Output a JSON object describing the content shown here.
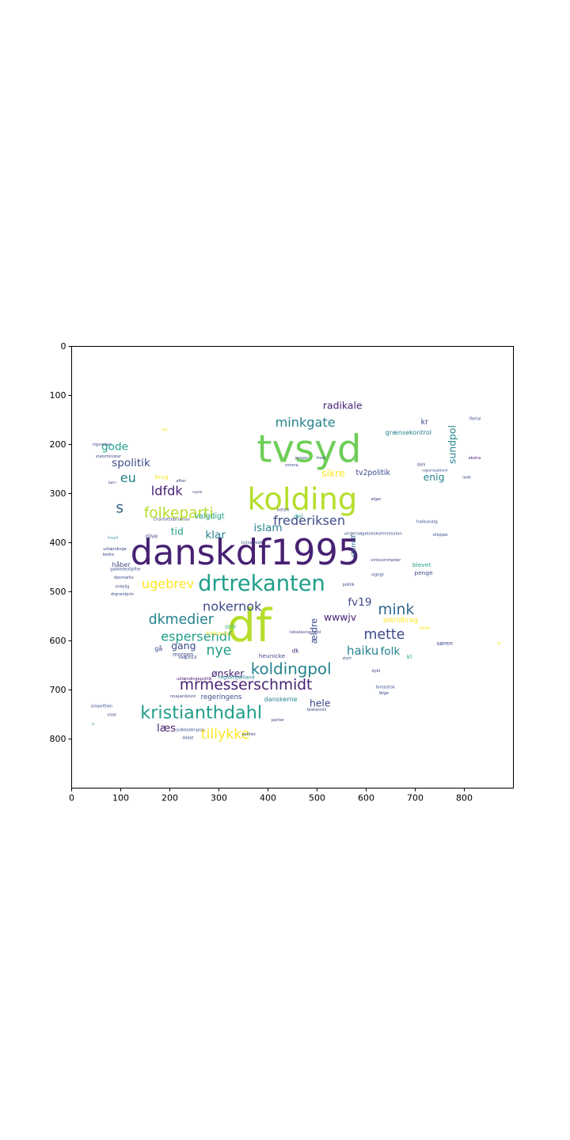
{
  "chart_data": {
    "type": "wordcloud",
    "xlim": [
      0,
      900
    ],
    "ylim": [
      900,
      0
    ],
    "xticks": [
      "0",
      "100",
      "200",
      "300",
      "400",
      "500",
      "600",
      "700",
      "800"
    ],
    "yticks": [
      "0",
      "100",
      "200",
      "300",
      "400",
      "500",
      "600",
      "700",
      "800"
    ],
    "colors": {
      "dark_purple": "#482173",
      "indigo": "#3e4a89",
      "blue": "#31688e",
      "teal": "#26828e",
      "green_teal": "#1f9e89",
      "green": "#35b779",
      "light_green": "#6ece58",
      "lime": "#b5de2b",
      "yellow": "#fde725"
    },
    "words": [
      {
        "text": "danskdf1995",
        "x": 354,
        "y": 420,
        "size": 72,
        "color": "dark_purple"
      },
      {
        "text": "df",
        "x": 362,
        "y": 570,
        "size": 92,
        "color": "lime"
      },
      {
        "text": "tvsyd",
        "x": 484,
        "y": 210,
        "size": 78,
        "color": "light_green"
      },
      {
        "text": "kolding",
        "x": 470,
        "y": 312,
        "size": 62,
        "color": "lime"
      },
      {
        "text": "drtrekanten",
        "x": 387,
        "y": 484,
        "size": 44,
        "color": "green_teal"
      },
      {
        "text": "kristianthdahl",
        "x": 264,
        "y": 747,
        "size": 36,
        "color": "green_teal"
      },
      {
        "text": "koldingpol",
        "x": 447,
        "y": 657,
        "size": 32,
        "color": "teal"
      },
      {
        "text": "mrmesserschmidt",
        "x": 355,
        "y": 690,
        "size": 30,
        "color": "dark_purple"
      },
      {
        "text": "folkeparti",
        "x": 218,
        "y": 340,
        "size": 30,
        "color": "lime"
      },
      {
        "text": "frederiksen",
        "x": 484,
        "y": 355,
        "size": 26,
        "color": "indigo"
      },
      {
        "text": "minkgate",
        "x": 476,
        "y": 155,
        "size": 26,
        "color": "teal"
      },
      {
        "text": "dkmedier",
        "x": 223,
        "y": 557,
        "size": 28,
        "color": "teal"
      },
      {
        "text": "espersendf",
        "x": 254,
        "y": 591,
        "size": 26,
        "color": "green_teal"
      },
      {
        "text": "nokernok",
        "x": 327,
        "y": 530,
        "size": 26,
        "color": "indigo"
      },
      {
        "text": "ugebrev",
        "x": 196,
        "y": 484,
        "size": 26,
        "color": "yellow"
      },
      {
        "text": "tillykke",
        "x": 313,
        "y": 791,
        "size": 28,
        "color": "yellow"
      },
      {
        "text": "mink",
        "x": 661,
        "y": 537,
        "size": 30,
        "color": "blue"
      },
      {
        "text": "mette",
        "x": 637,
        "y": 588,
        "size": 28,
        "color": "indigo"
      },
      {
        "text": "haiku",
        "x": 593,
        "y": 620,
        "size": 24,
        "color": "teal"
      },
      {
        "text": "folk",
        "x": 649,
        "y": 622,
        "size": 22,
        "color": "teal"
      },
      {
        "text": "ldfdk",
        "x": 194,
        "y": 294,
        "size": 26,
        "color": "dark_purple"
      },
      {
        "text": "eu",
        "x": 115,
        "y": 268,
        "size": 26,
        "color": "teal"
      },
      {
        "text": "s",
        "x": 98,
        "y": 330,
        "size": 30,
        "color": "blue"
      },
      {
        "text": "spolitik",
        "x": 121,
        "y": 238,
        "size": 22,
        "color": "indigo"
      },
      {
        "text": "gode",
        "x": 88,
        "y": 205,
        "size": 22,
        "color": "green_teal"
      },
      {
        "text": "radikale",
        "x": 552,
        "y": 120,
        "size": 20,
        "color": "dark_purple"
      },
      {
        "text": "sundpol",
        "x": 775,
        "y": 200,
        "size": 20,
        "color": "teal",
        "rotate": -90
      },
      {
        "text": "grænsekontrol",
        "x": 686,
        "y": 176,
        "size": 13,
        "color": "teal"
      },
      {
        "text": "kr",
        "x": 719,
        "y": 155,
        "size": 15,
        "color": "indigo"
      },
      {
        "text": "sikre",
        "x": 533,
        "y": 258,
        "size": 20,
        "color": "yellow"
      },
      {
        "text": "tv2politik",
        "x": 614,
        "y": 258,
        "size": 15,
        "color": "indigo"
      },
      {
        "text": "enig",
        "x": 738,
        "y": 266,
        "size": 20,
        "color": "teal"
      },
      {
        "text": "islam",
        "x": 400,
        "y": 370,
        "size": 22,
        "color": "teal"
      },
      {
        "text": "klar",
        "x": 293,
        "y": 385,
        "size": 22,
        "color": "teal"
      },
      {
        "text": "tid",
        "x": 215,
        "y": 377,
        "size": 20,
        "color": "green_teal"
      },
      {
        "text": "valgdigt",
        "x": 281,
        "y": 347,
        "size": 15,
        "color": "green_teal"
      },
      {
        "text": "fv19",
        "x": 587,
        "y": 522,
        "size": 22,
        "color": "indigo"
      },
      {
        "text": "wwwjv",
        "x": 547,
        "y": 552,
        "size": 20,
        "color": "dark_purple"
      },
      {
        "text": "astridkrag",
        "x": 670,
        "y": 559,
        "size": 14,
        "color": "yellow"
      },
      {
        "text": "gang",
        "x": 228,
        "y": 610,
        "size": 20,
        "color": "indigo"
      },
      {
        "text": "nye",
        "x": 300,
        "y": 620,
        "size": 28,
        "color": "green_teal"
      },
      {
        "text": "ønsker",
        "x": 318,
        "y": 666,
        "size": 20,
        "color": "dark_purple"
      },
      {
        "text": "hele",
        "x": 506,
        "y": 727,
        "size": 20,
        "color": "indigo"
      },
      {
        "text": "regeringens",
        "x": 305,
        "y": 715,
        "size": 14,
        "color": "indigo"
      },
      {
        "text": "danskerne",
        "x": 426,
        "y": 719,
        "size": 13,
        "color": "teal"
      },
      {
        "text": "læs",
        "x": 193,
        "y": 778,
        "size": 22,
        "color": "dark_purple"
      },
      {
        "text": "ældre",
        "x": 494,
        "y": 580,
        "size": 18,
        "color": "indigo",
        "rotate": -90
      },
      {
        "text": "stemdf",
        "x": 574,
        "y": 407,
        "size": 13,
        "color": "blue",
        "rotate": -90
      },
      {
        "text": "tid",
        "x": 0,
        "y": 0,
        "size": 0,
        "color": "teal",
        "hidden": true
      },
      {
        "text": "brug",
        "x": 183,
        "y": 266,
        "size": 12,
        "color": "yellow"
      },
      {
        "text": "morgen",
        "x": 227,
        "y": 628,
        "size": 11,
        "color": "indigo"
      },
      {
        "text": "heunicke",
        "x": 408,
        "y": 631,
        "size": 12,
        "color": "indigo"
      },
      {
        "text": "dk",
        "x": 456,
        "y": 620,
        "size": 12,
        "color": "dark_purple"
      },
      {
        "text": "trekanten",
        "x": 303,
        "y": 585,
        "size": 12,
        "color": "yellow"
      },
      {
        "text": "står",
        "x": 324,
        "y": 571,
        "size": 12,
        "color": "green"
      },
      {
        "text": "håber",
        "x": 101,
        "y": 445,
        "size": 13,
        "color": "indigo"
      },
      {
        "text": "give",
        "x": 163,
        "y": 386,
        "size": 12,
        "color": "indigo"
      },
      {
        "text": "penge",
        "x": 717,
        "y": 461,
        "size": 12,
        "color": "indigo"
      },
      {
        "text": "blevet",
        "x": 713,
        "y": 445,
        "size": 12,
        "color": "green_teal"
      },
      {
        "text": "søren",
        "x": 760,
        "y": 605,
        "size": 12,
        "color": "indigo"
      },
      {
        "text": "kl",
        "x": 688,
        "y": 632,
        "size": 12,
        "color": "green_teal"
      },
      {
        "text": "gå",
        "x": 177,
        "y": 616,
        "size": 13,
        "color": "indigo"
      },
      {
        "text": "lokalavisenkol",
        "x": 476,
        "y": 583,
        "size": 9,
        "color": "indigo"
      },
      {
        "text": "charlottebroman",
        "x": 204,
        "y": 353,
        "size": 9,
        "color": "indigo"
      },
      {
        "text": "statsminister",
        "x": 75,
        "y": 225,
        "size": 8,
        "color": "indigo"
      },
      {
        "text": "rigsretten",
        "x": 62,
        "y": 201,
        "size": 8,
        "color": "indigo"
      },
      {
        "text": "corona",
        "x": 448,
        "y": 243,
        "size": 8,
        "color": "indigo"
      },
      {
        "text": "jensen",
        "x": 468,
        "y": 228,
        "size": 8,
        "color": "indigo"
      },
      {
        "text": "frem",
        "x": 508,
        "y": 228,
        "size": 8,
        "color": "indigo"
      },
      {
        "text": "flertal",
        "x": 822,
        "y": 148,
        "size": 8,
        "color": "indigo"
      },
      {
        "text": "ekstra",
        "x": 821,
        "y": 228,
        "size": 8,
        "color": "dark_purple"
      },
      {
        "text": "lade",
        "x": 805,
        "y": 268,
        "size": 8,
        "color": "indigo"
      },
      {
        "text": "dahl",
        "x": 712,
        "y": 242,
        "size": 8,
        "color": "indigo"
      },
      {
        "text": "undersøgelseskommission",
        "x": 614,
        "y": 382,
        "size": 9,
        "color": "indigo"
      },
      {
        "text": "haikuvalg",
        "x": 724,
        "y": 358,
        "size": 9,
        "color": "indigo"
      },
      {
        "text": "stoppe",
        "x": 751,
        "y": 385,
        "size": 9,
        "color": "indigo"
      },
      {
        "text": "virksomheder",
        "x": 640,
        "y": 436,
        "size": 9,
        "color": "indigo"
      },
      {
        "text": "tv2newsdk",
        "x": 367,
        "y": 401,
        "size": 8,
        "color": "indigo"
      },
      {
        "text": "udlændinge",
        "x": 88,
        "y": 414,
        "size": 8,
        "color": "indigo"
      },
      {
        "text": "bedre",
        "x": 75,
        "y": 425,
        "size": 8,
        "color": "indigo"
      },
      {
        "text": "gakkedeafgifter",
        "x": 110,
        "y": 455,
        "size": 8,
        "color": "indigo"
      },
      {
        "text": "danmarks",
        "x": 106,
        "y": 472,
        "size": 8,
        "color": "indigo"
      },
      {
        "text": "virkelig",
        "x": 103,
        "y": 490,
        "size": 8,
        "color": "indigo"
      },
      {
        "text": "drgrandprix",
        "x": 103,
        "y": 506,
        "size": 8,
        "color": "indigo"
      },
      {
        "text": "valg2019",
        "x": 236,
        "y": 635,
        "size": 8,
        "color": "indigo"
      },
      {
        "text": "udlændingepolitik",
        "x": 250,
        "y": 678,
        "size": 8,
        "color": "dark_purple"
      },
      {
        "text": "regionsjælland",
        "x": 336,
        "y": 675,
        "size": 10,
        "color": "teal"
      },
      {
        "text": "noajankovic",
        "x": 227,
        "y": 714,
        "size": 9,
        "color": "indigo"
      },
      {
        "text": "simpelthen",
        "x": 61,
        "y": 734,
        "size": 8,
        "color": "indigo"
      },
      {
        "text": "viser",
        "x": 82,
        "y": 752,
        "size": 8,
        "color": "indigo"
      },
      {
        "text": "jvdkkoldingrsv",
        "x": 242,
        "y": 782,
        "size": 8,
        "color": "indigo"
      },
      {
        "text": "debat",
        "x": 237,
        "y": 798,
        "size": 8,
        "color": "indigo"
      },
      {
        "text": "politiet",
        "x": 361,
        "y": 791,
        "size": 8,
        "color": "indigo"
      },
      {
        "text": "partier",
        "x": 420,
        "y": 762,
        "size": 8,
        "color": "indigo"
      },
      {
        "text": "falstermill",
        "x": 499,
        "y": 741,
        "size": 8,
        "color": "indigo"
      },
      {
        "text": "fantastisk",
        "x": 639,
        "y": 695,
        "size": 8,
        "color": "indigo"
      },
      {
        "text": "følge",
        "x": 636,
        "y": 707,
        "size": 8,
        "color": "indigo"
      },
      {
        "text": "dybt",
        "x": 620,
        "y": 662,
        "size": 8,
        "color": "indigo"
      },
      {
        "text": "stort",
        "x": 561,
        "y": 636,
        "size": 8,
        "color": "indigo"
      },
      {
        "text": "politik",
        "x": 564,
        "y": 486,
        "size": 8,
        "color": "indigo"
      },
      {
        "text": "vigtigt",
        "x": 623,
        "y": 466,
        "size": 8,
        "color": "indigo"
      },
      {
        "text": "betale",
        "x": 431,
        "y": 334,
        "size": 8,
        "color": "indigo"
      },
      {
        "text": "del",
        "x": 462,
        "y": 347,
        "size": 11,
        "color": "green_teal"
      },
      {
        "text": "afgør",
        "x": 620,
        "y": 312,
        "size": 8,
        "color": "indigo"
      },
      {
        "text": "aftale",
        "x": 719,
        "y": 575,
        "size": 8,
        "color": "yellow"
      },
      {
        "text": "regionsjælland",
        "x": 740,
        "y": 254,
        "size": 7,
        "color": "indigo"
      },
      {
        "text": "jv",
        "x": 871,
        "y": 606,
        "size": 8,
        "color": "yellow"
      },
      {
        "text": "vej",
        "x": 189,
        "y": 170,
        "size": 8,
        "color": "yellow"
      },
      {
        "text": "aften",
        "x": 223,
        "y": 275,
        "size": 8,
        "color": "indigo"
      },
      {
        "text": "møde",
        "x": 256,
        "y": 298,
        "size": 7,
        "color": "indigo"
      },
      {
        "text": "børn",
        "x": 83,
        "y": 279,
        "size": 7,
        "color": "indigo"
      },
      {
        "text": "kvsyd",
        "x": 84,
        "y": 391,
        "size": 7,
        "color": "teal"
      },
      {
        "text": "v",
        "x": 44,
        "y": 770,
        "size": 8,
        "color": "teal"
      }
    ]
  }
}
